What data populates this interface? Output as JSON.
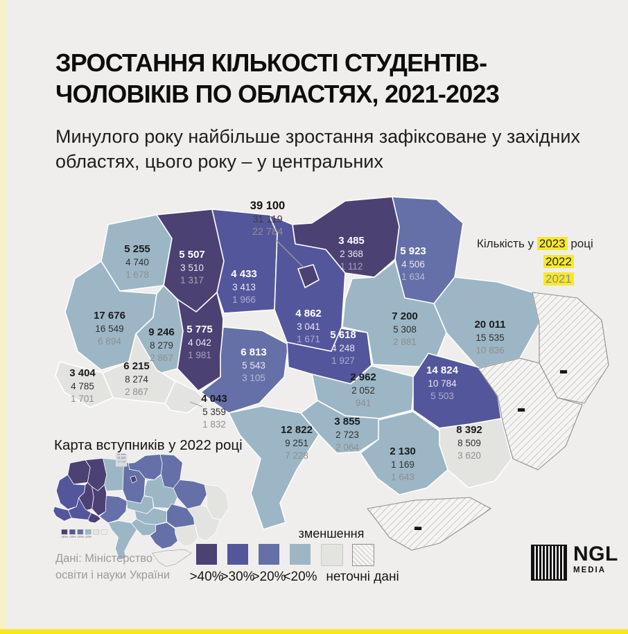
{
  "header": {
    "title_line1": "ЗРОСТАННЯ КІЛЬКОСТІ СТУДЕНТІВ-",
    "title_line2": "ЧОЛОВІКІВ ПО ОБЛАСТЯХ, 2021-2023",
    "subtitle": "Минулого року найбільше зростання зафіксоване у західних областях, цього року – у центральних"
  },
  "year_legend": {
    "prefix": "Кількість у",
    "year_2023": "2023",
    "suffix": "році",
    "year_2022": "2022",
    "year_2021": "2021",
    "highlight_color": "#f7e82a"
  },
  "kyiv_callout": {
    "v2023": "39 100",
    "v2022": "31 119",
    "v2021": "22 784"
  },
  "no_data_marker": "-",
  "regions": [
    {
      "id": "volyn",
      "v2023": "5 255",
      "v2022": "4 740",
      "v2021": "1 678",
      "category": "lt20"
    },
    {
      "id": "rivne",
      "v2023": "5 507",
      "v2022": "3 510",
      "v2021": "1 317",
      "category": "gt40"
    },
    {
      "id": "zhytomyr",
      "v2023": "4 433",
      "v2022": "3 413",
      "v2021": "1 966",
      "category": "gt30"
    },
    {
      "id": "kyiv_oblast",
      "v2023": "4 862",
      "v2022": "3 041",
      "v2021": "1 671",
      "category": "gt30"
    },
    {
      "id": "kyiv_city",
      "category": "gt40"
    },
    {
      "id": "chernihiv",
      "v2023": "3 485",
      "v2022": "2 368",
      "v2021": "1 112",
      "category": "gt40"
    },
    {
      "id": "sumy",
      "v2023": "5 923",
      "v2022": "4 506",
      "v2021": "1 634",
      "category": "gt20"
    },
    {
      "id": "lviv",
      "v2023": "17 676",
      "v2022": "16 549",
      "v2021": "6 894",
      "category": "lt20"
    },
    {
      "id": "ternopil",
      "v2023": "9 246",
      "v2022": "8 279",
      "v2021": "2 867",
      "category": "lt20"
    },
    {
      "id": "khmelnytskyi",
      "v2023": "5 775",
      "v2022": "4 042",
      "v2021": "1 981",
      "category": "gt40"
    },
    {
      "id": "zakarpattia",
      "v2023": "3 404",
      "v2022": "4 785",
      "v2021": "1 701",
      "category": "dec"
    },
    {
      "id": "ivano_frankivsk",
      "v2023": "6 215",
      "v2022": "8 274",
      "v2021": "2 867",
      "category": "dec"
    },
    {
      "id": "chernivtsi",
      "v2023": "4 043",
      "v2022": "5 359",
      "v2021": "1 832",
      "category": "dec"
    },
    {
      "id": "vinnytsia",
      "v2023": "6 813",
      "v2022": "5 543",
      "v2021": "3 105",
      "category": "gt20"
    },
    {
      "id": "cherkasy",
      "v2023": "5 618",
      "v2022": "4 248",
      "v2021": "1 927",
      "category": "gt30"
    },
    {
      "id": "poltava",
      "v2023": "7 200",
      "v2022": "5 308",
      "v2021": "2 881",
      "category": "lt20"
    },
    {
      "id": "kharkiv",
      "v2023": "20 011",
      "v2022": "15 535",
      "v2021": "10 836",
      "category": "lt20"
    },
    {
      "id": "kirovohrad",
      "v2023": "2 962",
      "v2022": "2 052",
      "v2021": "941",
      "category": "lt20"
    },
    {
      "id": "dnipro",
      "v2023": "14 824",
      "v2022": "10 784",
      "v2021": "5 503",
      "category": "gt30"
    },
    {
      "id": "odesa",
      "v2023": "12 822",
      "v2022": "9 251",
      "v2021": "7 228",
      "category": "lt20"
    },
    {
      "id": "mykolaiv",
      "v2023": "3 855",
      "v2022": "2 723",
      "v2021": "2 064",
      "category": "lt20"
    },
    {
      "id": "kherson",
      "v2023": "2 130",
      "v2022": "1 169",
      "v2021": "1 643",
      "category": "lt20"
    },
    {
      "id": "zaporizhzhia",
      "v2023": "8 392",
      "v2022": "8 509",
      "v2021": "3 620",
      "category": "dec"
    },
    {
      "id": "luhansk",
      "category": "nodata"
    },
    {
      "id": "donetsk",
      "category": "nodata"
    },
    {
      "id": "crimea",
      "category": "nodata"
    }
  ],
  "inset": {
    "title": "Карта вступників у 2022 році"
  },
  "legend": {
    "items": [
      {
        "label": ">40%",
        "color": "#4c4173"
      },
      {
        "label": ">30%",
        "color": "#54569c"
      },
      {
        "label": ">20%",
        "color": "#6570a8"
      },
      {
        "label": "<20%",
        "color": "#9cb6c5"
      }
    ],
    "decrease": {
      "label": "зменшення",
      "color": "#e3e3e0"
    },
    "no_data": {
      "label": "неточні дані",
      "pattern": "diagonal-hatch"
    }
  },
  "source": {
    "line1": "Дані: Міністерство",
    "line2": "освіти і науки України"
  },
  "logo": {
    "name": "NGL",
    "sub": "MEDIA"
  },
  "chart_data": {
    "type": "heatmap",
    "subtype": "choropleth-map-of-ukraine",
    "title": "ЗРОСТАННЯ КІЛЬКОСТІ СТУДЕНТІВ-ЧОЛОВІКІВ ПО ОБЛАСТЯХ, 2021-2023",
    "subtitle": "Минулого року найбільше зростання зафіксоване у західних областях, цього року – у центральних",
    "years": [
      2023,
      2022,
      2021
    ],
    "legend_categories": [
      ">40%",
      ">30%",
      ">20%",
      "<20%",
      "зменшення",
      "неточні дані"
    ],
    "series": [
      {
        "name": "kyiv_callout",
        "values": [
          39100,
          31119,
          22784
        ],
        "growth_category": ">40%"
      },
      {
        "name": "volyn",
        "values": [
          5255,
          4740,
          1678
        ],
        "growth_category": "<20%"
      },
      {
        "name": "rivne",
        "values": [
          5507,
          3510,
          1317
        ],
        "growth_category": ">40%"
      },
      {
        "name": "zhytomyr",
        "values": [
          4433,
          3413,
          1966
        ],
        "growth_category": ">30%"
      },
      {
        "name": "kyiv_oblast",
        "values": [
          4862,
          3041,
          1671
        ],
        "growth_category": ">30%"
      },
      {
        "name": "chernihiv",
        "values": [
          3485,
          2368,
          1112
        ],
        "growth_category": ">40%"
      },
      {
        "name": "sumy",
        "values": [
          5923,
          4506,
          1634
        ],
        "growth_category": ">20%"
      },
      {
        "name": "lviv",
        "values": [
          17676,
          16549,
          6894
        ],
        "growth_category": "<20%"
      },
      {
        "name": "ternopil",
        "values": [
          9246,
          8279,
          2867
        ],
        "growth_category": "<20%"
      },
      {
        "name": "khmelnytskyi",
        "values": [
          5775,
          4042,
          1981
        ],
        "growth_category": ">40%"
      },
      {
        "name": "zakarpattia",
        "values": [
          3404,
          4785,
          1701
        ],
        "growth_category": "зменшення"
      },
      {
        "name": "ivano_frankivsk",
        "values": [
          6215,
          8274,
          2867
        ],
        "growth_category": "зменшення"
      },
      {
        "name": "chernivtsi",
        "values": [
          4043,
          5359,
          1832
        ],
        "growth_category": "зменшення"
      },
      {
        "name": "vinnytsia",
        "values": [
          6813,
          5543,
          3105
        ],
        "growth_category": ">20%"
      },
      {
        "name": "cherkasy",
        "values": [
          5618,
          4248,
          1927
        ],
        "growth_category": ">30%"
      },
      {
        "name": "poltava",
        "values": [
          7200,
          5308,
          2881
        ],
        "growth_category": "<20%"
      },
      {
        "name": "kharkiv",
        "values": [
          20011,
          15535,
          10836
        ],
        "growth_category": "<20%"
      },
      {
        "name": "kirovohrad",
        "values": [
          2962,
          2052,
          941
        ],
        "growth_category": "<20%"
      },
      {
        "name": "dnipro",
        "values": [
          14824,
          10784,
          5503
        ],
        "growth_category": ">30%"
      },
      {
        "name": "odesa",
        "values": [
          12822,
          9251,
          7228
        ],
        "growth_category": "<20%"
      },
      {
        "name": "mykolaiv",
        "values": [
          3855,
          2723,
          2064
        ],
        "growth_category": "<20%"
      },
      {
        "name": "kherson",
        "values": [
          2130,
          1169,
          1643
        ],
        "growth_category": "<20%"
      },
      {
        "name": "zaporizhzhia",
        "values": [
          8392,
          8509,
          3620
        ],
        "growth_category": "зменшення"
      },
      {
        "name": "luhansk",
        "values": null,
        "growth_category": "неточні дані"
      },
      {
        "name": "donetsk",
        "values": null,
        "growth_category": "неточні дані"
      },
      {
        "name": "crimea",
        "values": null,
        "growth_category": "неточні дані"
      }
    ]
  }
}
